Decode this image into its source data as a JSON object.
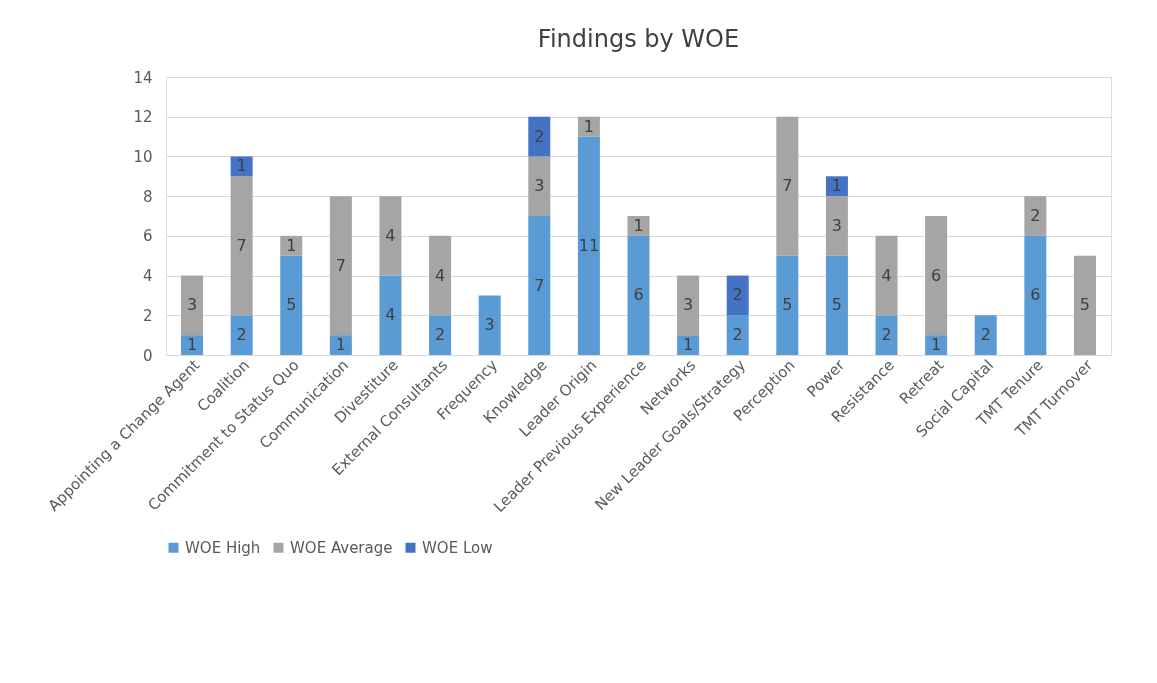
{
  "chart_data": {
    "type": "bar",
    "title": "Findings by WOE",
    "stacked": true,
    "data_labels": true,
    "legend": "bottom",
    "grid": "y",
    "categories": [
      "Appointing a Change Agent",
      "Coalition",
      "Commitment to Status Quo",
      "Communication",
      "Divestiture",
      "External Consultants",
      "Frequency",
      "Knowledge",
      "Leader Origin",
      "Leader Previous Experience",
      "Networks",
      "New Leader Goals/Strategy",
      "Perception",
      "Power",
      "Resistance",
      "Retreat",
      "Social Capital",
      "TMT Tenure",
      "TMT Turnover"
    ],
    "series": [
      {
        "name": "WOE High",
        "color": "#5b9bd5",
        "values": [
          1,
          2,
          5,
          1,
          4,
          2,
          3,
          7,
          11,
          6,
          1,
          2,
          5,
          5,
          2,
          1,
          2,
          6,
          null
        ]
      },
      {
        "name": "WOE Average",
        "color": "#a5a5a5",
        "values": [
          3,
          7,
          1,
          7,
          4,
          4,
          null,
          3,
          1,
          1,
          3,
          null,
          7,
          3,
          4,
          6,
          null,
          2,
          5
        ]
      },
      {
        "name": "WOE Low",
        "color": "#4472c4",
        "values": [
          null,
          1,
          null,
          null,
          null,
          null,
          null,
          2,
          null,
          null,
          null,
          2,
          null,
          1,
          null,
          null,
          null,
          null,
          null
        ]
      }
    ],
    "ylim": [
      0,
      14
    ],
    "yticks": [
      0,
      2,
      4,
      6,
      8,
      10,
      12,
      14
    ]
  }
}
